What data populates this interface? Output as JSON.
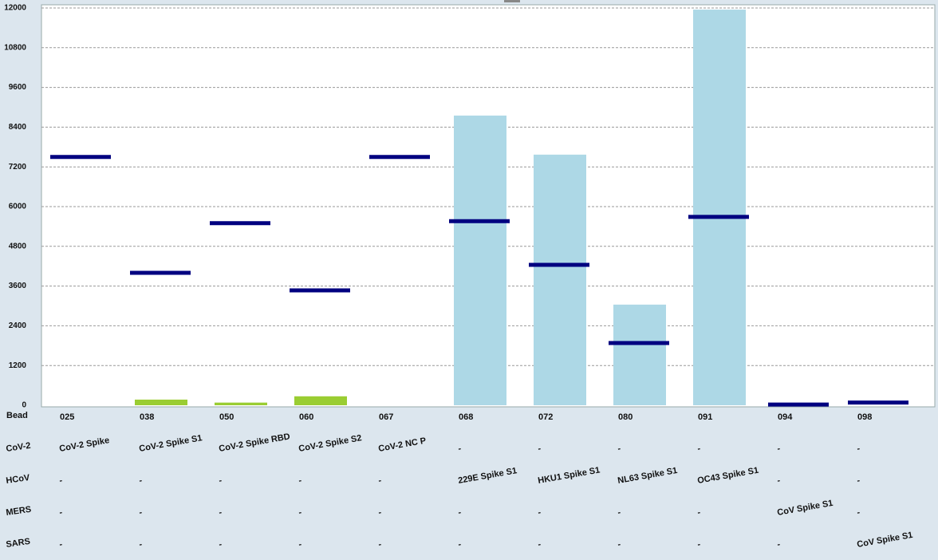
{
  "chart_data": {
    "type": "bar",
    "categories": [
      "025",
      "038",
      "050",
      "060",
      "067",
      "068",
      "072",
      "080",
      "091",
      "094",
      "098"
    ],
    "category_label": "Bead",
    "values": [
      0,
      170,
      80,
      270,
      0,
      8750,
      7570,
      3040,
      11950,
      0,
      0
    ],
    "colors": [
      "#add8e6",
      "#9acd32",
      "#9acd32",
      "#9acd32",
      "#add8e6",
      "#add8e6",
      "#add8e6",
      "#add8e6",
      "#add8e6",
      "#add8e6",
      "#add8e6"
    ],
    "cutoffs": [
      7500,
      4000,
      5500,
      3470,
      7500,
      5560,
      4240,
      1880,
      5690,
      20,
      80
    ],
    "cutoff_color": "#000080",
    "ylim": [
      0,
      12000
    ],
    "yticks": [
      0,
      1200,
      2400,
      3600,
      4800,
      6000,
      7200,
      8400,
      9600,
      10800,
      12000
    ],
    "grid": true,
    "antigen_rows": [
      {
        "label": "CoV-2",
        "cells": [
          "CoV-2 Spike",
          "CoV-2 Spike S1",
          "CoV-2 Spike RBD",
          "CoV-2 Spike S2",
          "CoV-2 NC P",
          "-",
          "-",
          "-",
          "-",
          "-",
          "-"
        ]
      },
      {
        "label": "HCoV",
        "cells": [
          "-",
          "-",
          "-",
          "-",
          "-",
          "229E Spike S1",
          "HKU1 Spike S1",
          "NL63 Spike S1",
          "OC43 Spike S1",
          "-",
          "-"
        ]
      },
      {
        "label": "MERS",
        "cells": [
          "-",
          "-",
          "-",
          "-",
          "-",
          "-",
          "-",
          "-",
          "-",
          "CoV Spike S1",
          "-"
        ]
      },
      {
        "label": "SARS",
        "cells": [
          "-",
          "-",
          "-",
          "-",
          "-",
          "-",
          "-",
          "-",
          "-",
          "-",
          "CoV Spike S1"
        ]
      }
    ]
  }
}
